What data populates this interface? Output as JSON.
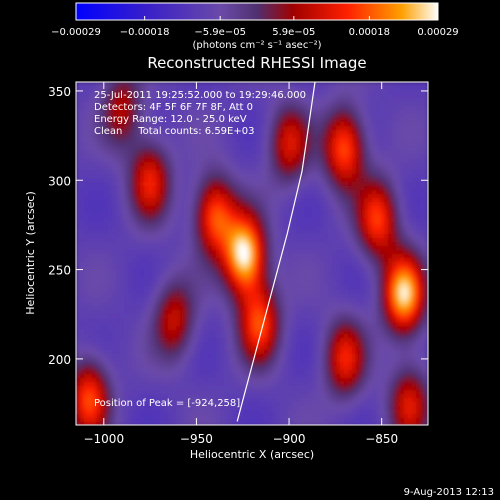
{
  "chart_data": {
    "type": "heatmap",
    "title": "Reconstructed RHESSI Image",
    "xlabel": "Heliocentric X (arcsec)",
    "ylabel": "Heliocentric Y (arcsec)",
    "xlim": [
      -1015,
      -825
    ],
    "ylim": [
      163,
      355
    ],
    "x_ticks": [
      -1000,
      -950,
      -900,
      -850
    ],
    "x_tick_labels": [
      "−1000",
      "−950",
      "−900",
      "−850"
    ],
    "y_ticks": [
      200,
      250,
      300,
      350
    ],
    "y_tick_labels": [
      "200",
      "250",
      "300",
      "350"
    ],
    "colorbar": {
      "range": [
        -0.00029,
        0.00029
      ],
      "ticks": [
        -0.00029,
        -0.00018,
        -5.9e-05,
        5.9e-05,
        0.00018,
        0.00029
      ],
      "tick_labels": [
        "−0.00029",
        "−0.00018",
        "−5.9e−05",
        "5.9e−05",
        "0.00018",
        "0.00029"
      ],
      "units_label": "(photons cm⁻² s⁻¹ asec⁻²)"
    },
    "annotations": [
      "25-Jul-2011 19:25:52.000 to 19:29:46.000",
      "Detectors: 4F 5F 6F 7F 8F, Att 0",
      "Energy Range: 12.0 - 25.0 keV",
      "Clean     Total counts: 6.59E+03"
    ],
    "peak_label": "Position of Peak = [-924,258]",
    "peak": [
      -924,
      258
    ],
    "sources": [
      {
        "x": -924,
        "y": 258,
        "value": 0.00029
      },
      {
        "x": -838,
        "y": 236,
        "value": 0.00026
      },
      {
        "x": -940,
        "y": 280,
        "value": 0.00018
      },
      {
        "x": -916,
        "y": 220,
        "value": 0.00016
      },
      {
        "x": -870,
        "y": 318,
        "value": 0.00018
      },
      {
        "x": -852,
        "y": 278,
        "value": 0.00015
      },
      {
        "x": -975,
        "y": 300,
        "value": 0.00012
      },
      {
        "x": -1008,
        "y": 178,
        "value": 0.00016
      },
      {
        "x": -870,
        "y": 200,
        "value": 0.00012
      },
      {
        "x": -962,
        "y": 222,
        "value": 9e-05
      },
      {
        "x": -900,
        "y": 320,
        "value": 0.0001
      },
      {
        "x": -990,
        "y": 340,
        "value": 7e-05
      },
      {
        "x": -835,
        "y": 175,
        "value": 0.0001
      }
    ],
    "limb": {
      "x": [
        -928,
        -919,
        -910,
        -901,
        -893,
        -886
      ],
      "y": [
        165,
        200,
        235,
        270,
        305,
        355
      ]
    }
  },
  "footer": {
    "timestamp": "9-Aug-2013 12:13"
  }
}
